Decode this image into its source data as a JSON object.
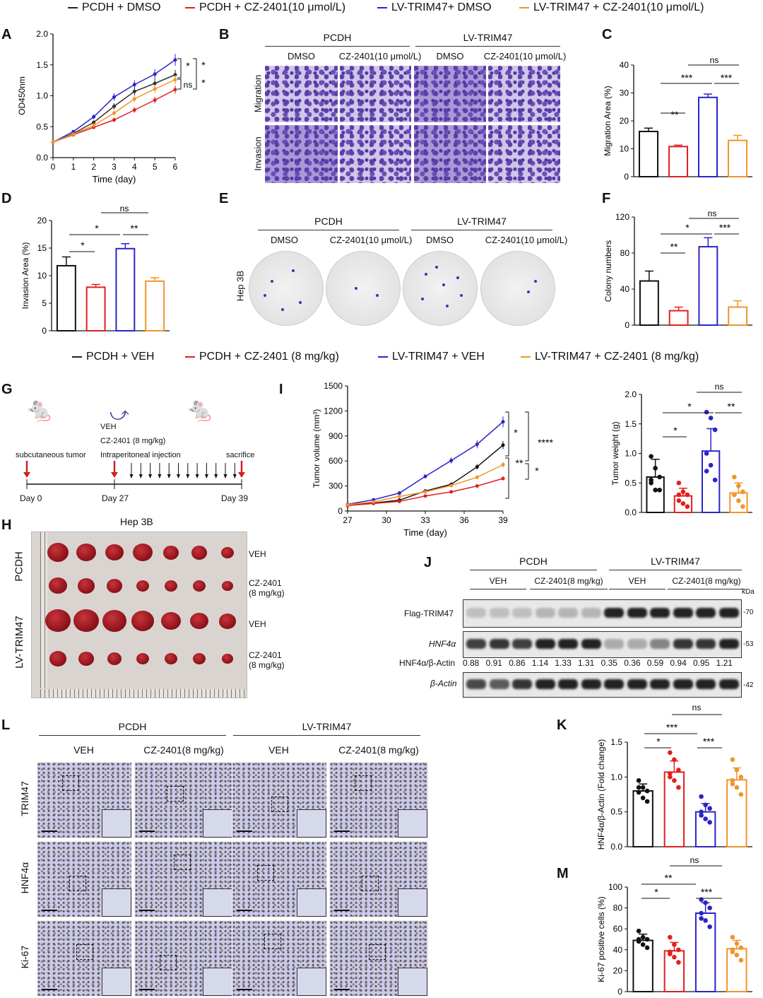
{
  "legend_top": [
    {
      "label": "PCDH + DMSO",
      "color": "#222222"
    },
    {
      "label": "PCDH + CZ-2401(10 μmol/L)",
      "color": "#e02020"
    },
    {
      "label": "LV-TRIM47+ DMSO",
      "color": "#2a24c8"
    },
    {
      "label": "LV-TRIM47 + CZ-2401(10 μmol/L)",
      "color": "#f0952a"
    }
  ],
  "legend_mid": [
    {
      "label": "PCDH + VEH",
      "color": "#222222"
    },
    {
      "label": "PCDH + CZ-2401 (8 mg/kg)",
      "color": "#e02020"
    },
    {
      "label": "LV-TRIM47 + VEH",
      "color": "#2a24c8"
    },
    {
      "label": "LV-TRIM47 + CZ-2401 (8 mg/kg)",
      "color": "#f0952a"
    }
  ],
  "panels": {
    "A": "A",
    "B": "B",
    "C": "C",
    "D": "D",
    "E": "E",
    "F": "F",
    "G": "G",
    "H": "H",
    "I": "I",
    "J": "J",
    "K": "K",
    "L": "L",
    "M": "M"
  },
  "B": {
    "group1": "PCDH",
    "group2": "LV-TRIM47",
    "cols": [
      "DMSO",
      "CZ-2401(10 μmol/L)",
      "DMSO",
      "CZ-2401(10 μmol/L)"
    ],
    "rows": [
      "Migration",
      "Invasion"
    ]
  },
  "E": {
    "group1": "PCDH",
    "group2": "LV-TRIM47",
    "cols": [
      "DMSO",
      "CZ-2401(10 μmol/L)",
      "DMSO",
      "CZ-2401(10 μmol/L)"
    ],
    "row": "Hep 3B"
  },
  "G": {
    "veh": "VEH",
    "drug": "CZ-2401 (8 mg/kg)",
    "ev1": "subcutaneous tumor",
    "ev2": "Intraperitoneal injection",
    "ev3": "sacrifice",
    "d0": "Day 0",
    "d27": "Day 27",
    "d39": "Day 39"
  },
  "H": {
    "title": "Hep 3B",
    "g1": "PCDH",
    "g2": "LV-TRIM47",
    "rows": [
      "VEH",
      "CZ-2401\n(8 mg/kg)",
      "VEH",
      "CZ-2401\n(8 mg/kg)"
    ]
  },
  "J": {
    "group1": "PCDH",
    "group2": "LV-TRIM47",
    "sub": [
      "VEH",
      "CZ-2401(8 mg/kg)",
      "VEH",
      "CZ-2401(8 mg/kg)"
    ],
    "kda": "kDa",
    "rows": [
      "Flag-TRIM47",
      "HNF4α",
      "β-Actin"
    ],
    "mw": [
      "-70",
      "-53",
      "-42"
    ],
    "ratio_label": "HNF4α/β-Actin",
    "ratios": [
      "0.88",
      "0.91",
      "0.86",
      "1.14",
      "1.33",
      "1.31",
      "0.35",
      "0.36",
      "0.59",
      "0.94",
      "0.95",
      "1.21"
    ]
  },
  "L": {
    "group1": "PCDH",
    "group2": "LV-TRIM47",
    "cols": [
      "VEH",
      "CZ-2401(8 mg/kg)",
      "VEH",
      "CZ-2401(8 mg/kg)"
    ],
    "rows": [
      "TRIM47",
      "HNF4α",
      "Ki-67"
    ]
  },
  "chart_data": [
    {
      "id": "A",
      "type": "line",
      "xlabel": "Time (day)",
      "ylabel": "OD450nm",
      "xlim": [
        0,
        6
      ],
      "ylim": [
        0,
        2
      ],
      "xticks": [
        0,
        1,
        2,
        3,
        4,
        5,
        6
      ],
      "yticks": [
        "0.0",
        "0.5",
        "1.0",
        "1.5",
        "2.0"
      ],
      "x": [
        0,
        1,
        2,
        3,
        4,
        5,
        6
      ],
      "series": [
        {
          "name": "PCDH + DMSO",
          "color": "#333333",
          "values": [
            0.25,
            0.39,
            0.57,
            0.83,
            1.07,
            1.2,
            1.34
          ]
        },
        {
          "name": "PCDH + CZ-2401(10 μmol/L)",
          "color": "#e02020",
          "values": [
            0.25,
            0.37,
            0.49,
            0.61,
            0.77,
            0.93,
            1.1
          ]
        },
        {
          "name": "LV-TRIM47+ DMSO",
          "color": "#2a24c8",
          "values": [
            0.25,
            0.42,
            0.66,
            0.98,
            1.18,
            1.35,
            1.58
          ]
        },
        {
          "name": "LV-TRIM47 + CZ-2401(10 μmol/L)",
          "color": "#f0952a",
          "values": [
            0.25,
            0.38,
            0.52,
            0.72,
            0.95,
            1.11,
            1.26
          ]
        }
      ],
      "annotations": [
        "*",
        "*",
        "ns",
        "*"
      ]
    },
    {
      "id": "C",
      "type": "bar",
      "ylabel": "Migration Area (%)",
      "ylim": [
        0,
        40
      ],
      "yticks": [
        "0",
        "10",
        "20",
        "30",
        "40"
      ],
      "values": [
        16.2,
        10.8,
        28.4,
        13.0
      ],
      "errors": [
        1.2,
        0.5,
        1.2,
        1.8
      ],
      "annotations": [
        "**",
        "***",
        "***",
        "ns"
      ]
    },
    {
      "id": "D",
      "type": "bar",
      "ylabel": "Invasion Area (%)",
      "ylim": [
        0,
        20
      ],
      "yticks": [
        "0",
        "5",
        "10",
        "15",
        "20"
      ],
      "values": [
        11.8,
        7.9,
        14.9,
        9.0
      ],
      "errors": [
        1.6,
        0.5,
        0.9,
        0.6
      ],
      "annotations": [
        "*",
        "*",
        "**",
        "ns"
      ]
    },
    {
      "id": "F",
      "type": "bar",
      "ylabel": "Colony numbers",
      "ylim": [
        0,
        120
      ],
      "yticks": [
        "0",
        "40",
        "80",
        "120"
      ],
      "values": [
        49,
        16,
        87,
        20
      ],
      "errors": [
        11,
        4,
        10,
        7
      ],
      "annotations": [
        "**",
        "*",
        "***",
        "ns"
      ]
    },
    {
      "id": "I",
      "type": "line",
      "xlabel": "Time (day)",
      "ylabel": "Tumor volume (mm³)",
      "xlim": [
        27,
        39
      ],
      "ylim": [
        0,
        1500
      ],
      "xticks": [
        27,
        30,
        33,
        36,
        39
      ],
      "yticks": [
        "0",
        "300",
        "600",
        "900",
        "1200",
        "1500"
      ],
      "x": [
        27,
        29,
        31,
        33,
        35,
        37,
        39
      ],
      "series": [
        {
          "name": "PCDH + VEH",
          "color": "#111111",
          "values": [
            70,
            95,
            130,
            240,
            320,
            530,
            790
          ]
        },
        {
          "name": "PCDH + CZ-2401 (8 mg/kg)",
          "color": "#e02020",
          "values": [
            65,
            90,
            115,
            180,
            230,
            300,
            390
          ]
        },
        {
          "name": "LV-TRIM47 + VEH",
          "color": "#2a24c8",
          "values": [
            80,
            135,
            215,
            415,
            605,
            800,
            1070
          ]
        },
        {
          "name": "LV-TRIM47 + CZ-2401 (8 mg/kg)",
          "color": "#f0952a",
          "values": [
            75,
            110,
            175,
            230,
            305,
            405,
            555
          ]
        }
      ],
      "annotations": [
        "*",
        "****",
        "**",
        "*"
      ]
    },
    {
      "id": "W",
      "type": "bar",
      "ylabel": "Tumor weight (g)",
      "ylim": [
        0,
        2
      ],
      "yticks": [
        "0.0",
        "0.5",
        "1.0",
        "1.5",
        "2.0"
      ],
      "values": [
        0.6,
        0.28,
        1.04,
        0.33
      ],
      "errors": [
        0.3,
        0.13,
        0.38,
        0.17
      ],
      "points": [
        [
          0.95,
          0.75,
          0.6,
          0.5,
          0.38,
          0.38,
          0.55
        ],
        [
          0.5,
          0.35,
          0.3,
          0.2,
          0.15,
          0.1,
          0.3
        ],
        [
          1.7,
          1.6,
          1.4,
          1.0,
          0.8,
          0.55,
          0.7
        ],
        [
          0.6,
          0.45,
          0.35,
          0.3,
          0.2,
          0.1,
          0.3
        ]
      ],
      "annotations": [
        "*",
        "*",
        "**",
        "ns"
      ]
    },
    {
      "id": "K",
      "type": "bar",
      "ylabel": "HNF4α/β-Actin (Fold change)",
      "ylim": [
        0,
        1.5
      ],
      "yticks": [
        "0.0",
        "0.5",
        "1.0",
        "1.5"
      ],
      "values": [
        0.8,
        1.07,
        0.5,
        0.96
      ],
      "errors": [
        0.1,
        0.16,
        0.12,
        0.17
      ],
      "points": [
        [
          0.95,
          0.85,
          0.8,
          0.78,
          0.7,
          0.65,
          0.85
        ],
        [
          1.35,
          1.25,
          1.1,
          1.0,
          0.95,
          0.85,
          1.05
        ],
        [
          0.72,
          0.6,
          0.55,
          0.45,
          0.4,
          0.35,
          0.5
        ],
        [
          1.25,
          1.1,
          1.0,
          0.95,
          0.85,
          0.75,
          0.9
        ]
      ],
      "annotations": [
        "*",
        "***",
        "***",
        "ns"
      ]
    },
    {
      "id": "M",
      "type": "bar",
      "ylabel": "Ki-67 positive cells (%)",
      "ylim": [
        0,
        100
      ],
      "yticks": [
        "0",
        "20",
        "40",
        "60",
        "80",
        "100"
      ],
      "values": [
        49,
        39,
        75,
        41
      ],
      "errors": [
        6,
        8,
        10,
        8
      ],
      "points": [
        [
          58,
          52,
          50,
          48,
          45,
          42,
          50
        ],
        [
          52,
          45,
          40,
          38,
          33,
          28,
          36
        ],
        [
          88,
          85,
          80,
          75,
          68,
          62,
          70
        ],
        [
          52,
          46,
          42,
          40,
          35,
          30,
          38
        ]
      ],
      "annotations": [
        "*",
        "**",
        "***",
        "ns"
      ]
    }
  ]
}
